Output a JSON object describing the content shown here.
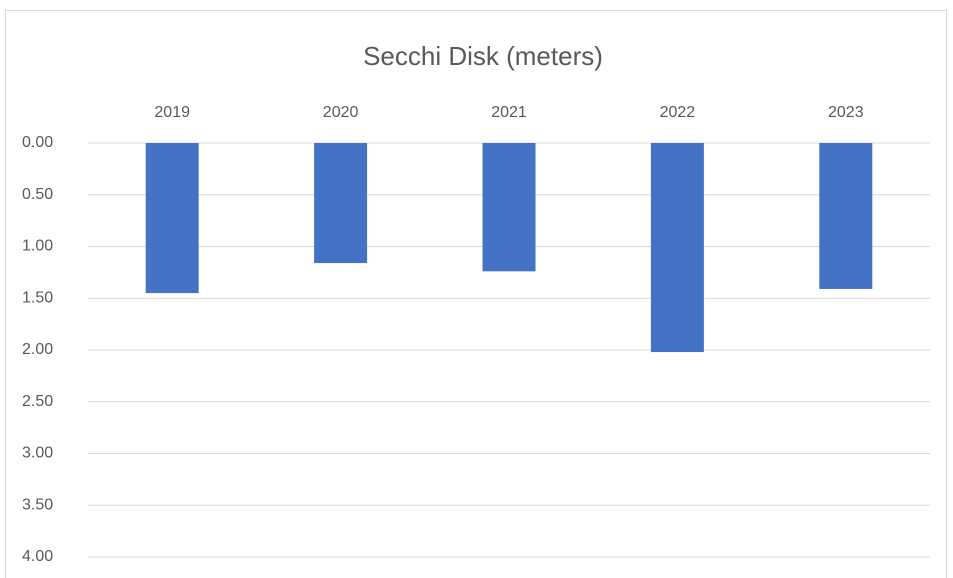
{
  "chart_data": {
    "type": "bar",
    "title": "Secchi Disk (meters)",
    "categories": [
      "2019",
      "2020",
      "2021",
      "2022",
      "2023"
    ],
    "values": [
      1.45,
      1.16,
      1.24,
      2.02,
      1.41
    ],
    "color": "#4472c4",
    "ylim": [
      0,
      4
    ],
    "y_reversed": true,
    "yticks": [
      {
        "value": 0,
        "label": "0.00"
      },
      {
        "value": 0.5,
        "label": "0.50"
      },
      {
        "value": 1,
        "label": "1.00"
      },
      {
        "value": 1.5,
        "label": "1.50"
      },
      {
        "value": 2,
        "label": "2.00"
      },
      {
        "value": 2.5,
        "label": "2.50"
      },
      {
        "value": 3,
        "label": "3.00"
      },
      {
        "value": 3.5,
        "label": "3.50"
      },
      {
        "value": 4,
        "label": "4.00"
      }
    ],
    "grid": true
  }
}
